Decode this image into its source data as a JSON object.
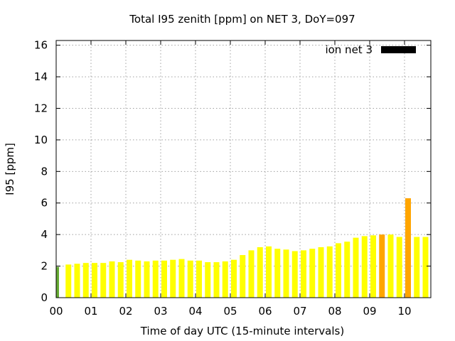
{
  "chart_data": {
    "type": "bar",
    "title": "Total I95 zenith [ppm] on NET 3, DoY=097",
    "xlabel": "Time of day UTC (15-minute intervals)",
    "ylabel": "I95 [ppm]",
    "ylim": [
      0,
      16.3
    ],
    "yticks": [
      0,
      2,
      4,
      6,
      8,
      10,
      12,
      14,
      16
    ],
    "xlim": [
      0,
      43
    ],
    "xticks": [
      {
        "label": "00",
        "value": 0
      },
      {
        "label": "01",
        "value": 4
      },
      {
        "label": "02",
        "value": 8
      },
      {
        "label": "03",
        "value": 12
      },
      {
        "label": "04",
        "value": 16
      },
      {
        "label": "05",
        "value": 20
      },
      {
        "label": "06",
        "value": 24
      },
      {
        "label": "07",
        "value": 28
      },
      {
        "label": "08",
        "value": 32
      },
      {
        "label": "09",
        "value": 36
      },
      {
        "label": "10",
        "value": 40
      }
    ],
    "grid": true,
    "legend": {
      "placement": "top-right",
      "label": "ion net 3",
      "color": "#000000"
    },
    "colors": {
      "low": "#66aa33",
      "normal": "#ffff00",
      "elevated": "#ffa500"
    },
    "series": [
      {
        "name": "ion net 3",
        "values": [
          1.95,
          2.1,
          2.15,
          2.2,
          2.2,
          2.2,
          2.3,
          2.25,
          2.4,
          2.35,
          2.3,
          2.35,
          2.35,
          2.4,
          2.45,
          2.35,
          2.35,
          2.25,
          2.25,
          2.3,
          2.4,
          2.7,
          3.0,
          3.2,
          3.25,
          3.1,
          3.05,
          2.95,
          3.0,
          3.1,
          3.2,
          3.25,
          3.45,
          3.55,
          3.8,
          3.9,
          3.95,
          4.0,
          4.0,
          3.85,
          6.3,
          3.85,
          3.85,
          3.85
        ],
        "colors": [
          "low",
          "normal",
          "normal",
          "normal",
          "normal",
          "normal",
          "normal",
          "normal",
          "normal",
          "normal",
          "normal",
          "normal",
          "normal",
          "normal",
          "normal",
          "normal",
          "normal",
          "normal",
          "normal",
          "normal",
          "normal",
          "normal",
          "normal",
          "normal",
          "normal",
          "normal",
          "normal",
          "normal",
          "normal",
          "normal",
          "normal",
          "normal",
          "normal",
          "normal",
          "normal",
          "normal",
          "normal",
          "elevated",
          "normal",
          "normal",
          "elevated",
          "normal",
          "normal",
          "normal"
        ]
      }
    ]
  }
}
